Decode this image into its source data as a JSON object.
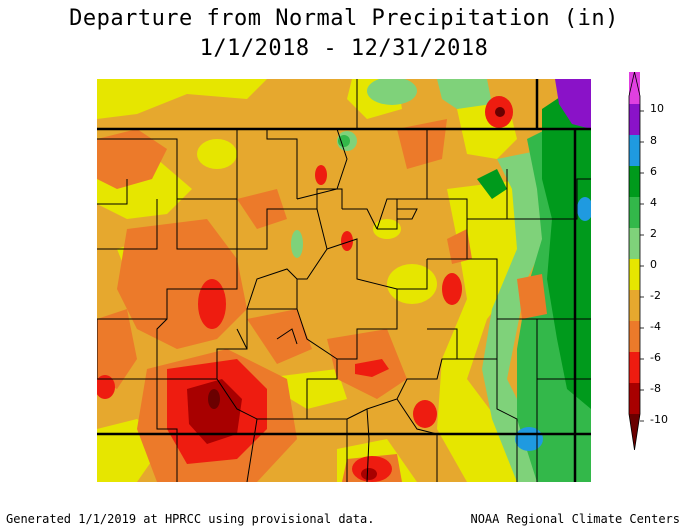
{
  "title": {
    "line1": "Departure from Normal Precipitation (in)",
    "line2": "1/1/2018 - 12/31/2018"
  },
  "legend": {
    "labels": [
      "10",
      "8",
      "6",
      "4",
      "2",
      "0",
      "-2",
      "-4",
      "-6",
      "-8",
      "-10"
    ],
    "colors": {
      "plus10": "#e040e0",
      "8to10": "#8a12c8",
      "6to8": "#1f9ae0",
      "4to6": "#009a1c",
      "2to4": "#33b84a",
      "0to2": "#7fd27a",
      "neg2to0": "#e6e600",
      "neg4toneg2": "#e6a82e",
      "neg6toneg4": "#ec7a2a",
      "neg8toneg6": "#ee1c10",
      "neg10toneg8": "#a80000",
      "below": "#6a0000"
    }
  },
  "footer": {
    "left": "Generated 1/1/2019 at HPRCC using provisional data.",
    "right": "NOAA Regional Climate Centers"
  }
}
